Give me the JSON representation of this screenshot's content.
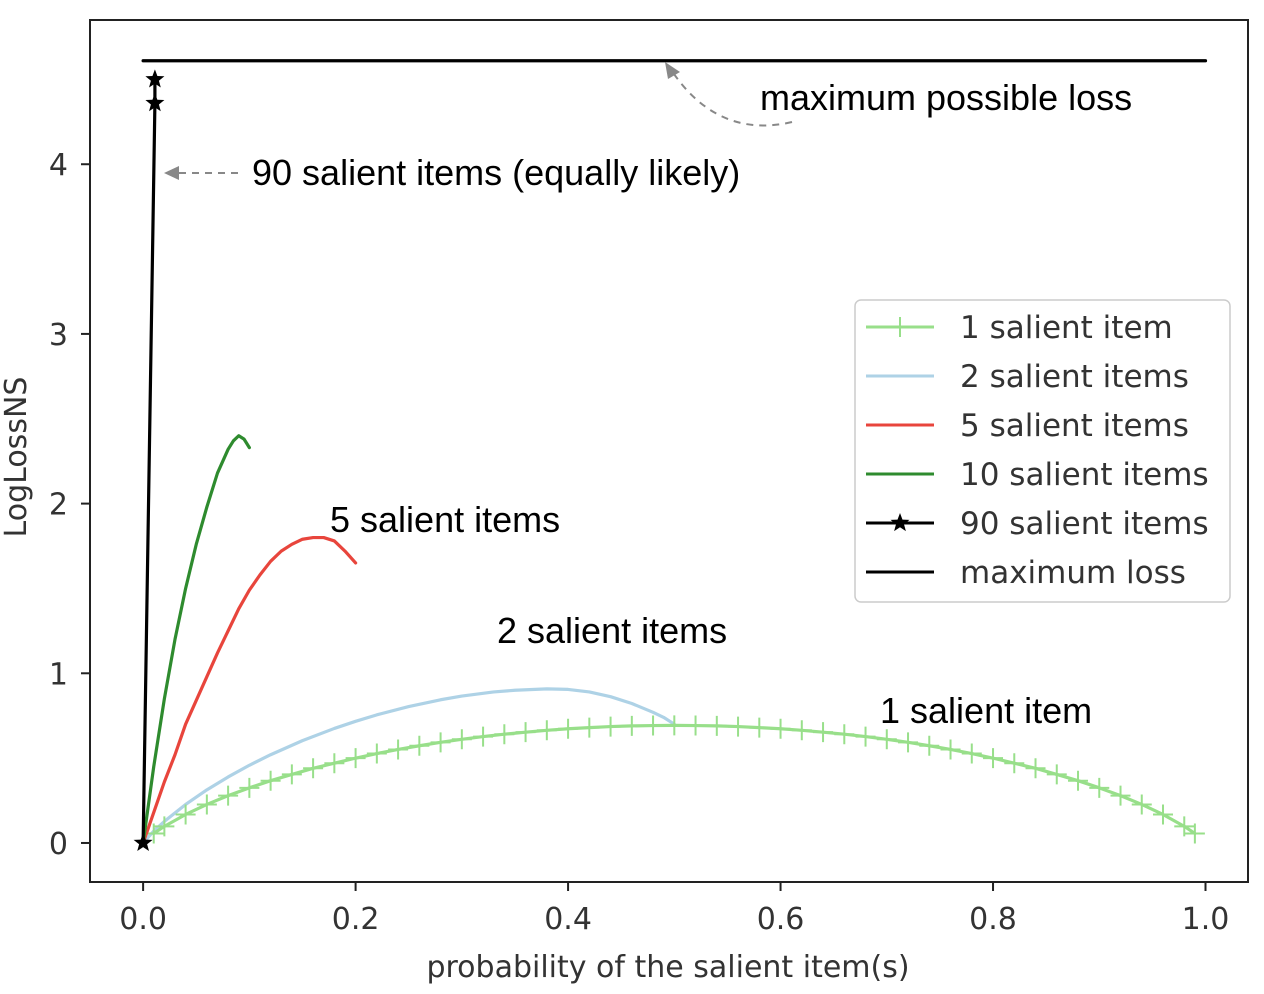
{
  "chart_data": {
    "type": "line",
    "title": "",
    "xlabel": "probability of the salient item(s)",
    "ylabel": "LogLossNS",
    "xlim": [
      -0.05,
      1.04
    ],
    "ylim": [
      -0.23,
      4.85
    ],
    "x_ticks": [
      0.0,
      0.2,
      0.4,
      0.6,
      0.8,
      1.0
    ],
    "x_tick_labels": [
      "0.0",
      "0.2",
      "0.4",
      "0.6",
      "0.8",
      "1.0"
    ],
    "y_ticks": [
      0,
      1,
      2,
      3,
      4
    ],
    "y_tick_labels": [
      "0",
      "1",
      "2",
      "3",
      "4"
    ],
    "grid": false,
    "legend_position": "center-right",
    "series": [
      {
        "name": "1 salient item",
        "color": "#98df8a",
        "marker": "plus",
        "x": [
          0.01,
          0.02,
          0.04,
          0.06,
          0.08,
          0.1,
          0.12,
          0.14,
          0.16,
          0.18,
          0.2,
          0.22,
          0.24,
          0.26,
          0.28,
          0.3,
          0.32,
          0.34,
          0.36,
          0.38,
          0.4,
          0.42,
          0.44,
          0.46,
          0.48,
          0.5,
          0.52,
          0.54,
          0.56,
          0.58,
          0.6,
          0.62,
          0.64,
          0.66,
          0.68,
          0.7,
          0.72,
          0.74,
          0.76,
          0.78,
          0.8,
          0.82,
          0.84,
          0.86,
          0.88,
          0.9,
          0.92,
          0.94,
          0.96,
          0.98,
          0.99
        ],
        "y": [
          0.056,
          0.098,
          0.168,
          0.227,
          0.279,
          0.325,
          0.367,
          0.404,
          0.44,
          0.47,
          0.5,
          0.527,
          0.551,
          0.573,
          0.593,
          0.611,
          0.627,
          0.641,
          0.653,
          0.664,
          0.673,
          0.68,
          0.686,
          0.69,
          0.692,
          0.693,
          0.692,
          0.69,
          0.686,
          0.68,
          0.673,
          0.664,
          0.653,
          0.641,
          0.627,
          0.611,
          0.593,
          0.573,
          0.551,
          0.527,
          0.5,
          0.47,
          0.44,
          0.404,
          0.367,
          0.325,
          0.279,
          0.227,
          0.168,
          0.098,
          0.056
        ]
      },
      {
        "name": "2 salient items",
        "color": "#aed2e6",
        "marker": "none",
        "x": [
          0.0,
          0.01,
          0.02,
          0.04,
          0.06,
          0.08,
          0.1,
          0.12,
          0.15,
          0.18,
          0.2,
          0.22,
          0.25,
          0.28,
          0.3,
          0.33,
          0.35,
          0.38,
          0.4,
          0.42,
          0.44,
          0.46,
          0.48,
          0.49,
          0.5
        ],
        "y": [
          0.0,
          0.07,
          0.127,
          0.227,
          0.313,
          0.389,
          0.458,
          0.52,
          0.603,
          0.675,
          0.717,
          0.755,
          0.804,
          0.844,
          0.866,
          0.89,
          0.9,
          0.908,
          0.905,
          0.89,
          0.862,
          0.822,
          0.77,
          0.74,
          0.7
        ]
      },
      {
        "name": "5 salient items",
        "color": "#e8453c",
        "marker": "none",
        "x": [
          0.0,
          0.01,
          0.02,
          0.03,
          0.04,
          0.05,
          0.06,
          0.07,
          0.08,
          0.09,
          0.1,
          0.11,
          0.12,
          0.13,
          0.14,
          0.15,
          0.16,
          0.17,
          0.18,
          0.19,
          0.2
        ],
        "y": [
          0.0,
          0.18,
          0.36,
          0.52,
          0.7,
          0.84,
          0.98,
          1.12,
          1.25,
          1.38,
          1.49,
          1.58,
          1.66,
          1.72,
          1.76,
          1.79,
          1.8,
          1.8,
          1.78,
          1.72,
          1.65
        ]
      },
      {
        "name": "10 salient items",
        "color": "#2e8b2e",
        "marker": "none",
        "x": [
          0.0,
          0.01,
          0.02,
          0.03,
          0.04,
          0.05,
          0.06,
          0.07,
          0.08,
          0.085,
          0.09,
          0.095,
          0.1
        ],
        "y": [
          0.0,
          0.45,
          0.85,
          1.2,
          1.5,
          1.76,
          1.98,
          2.18,
          2.32,
          2.37,
          2.4,
          2.38,
          2.33
        ]
      },
      {
        "name": "90 salient items",
        "color": "#000000",
        "marker": "star",
        "x": [
          0.0,
          0.0111,
          0.0111
        ],
        "y": [
          0.0,
          4.36,
          4.5
        ]
      },
      {
        "name": "maximum loss",
        "color": "#000000",
        "marker": "none",
        "x": [
          0.0,
          1.0
        ],
        "y": [
          4.61,
          4.61
        ]
      }
    ],
    "annotations": [
      {
        "text": "maximum possible loss",
        "arrow_to": [
          0.5,
          4.61
        ]
      },
      {
        "text": "90 salient items (equally likely)",
        "arrow_to": [
          0.02,
          3.95
        ]
      },
      {
        "text": "5 salient items"
      },
      {
        "text": "2 salient items"
      },
      {
        "text": "1 salient item"
      }
    ]
  }
}
